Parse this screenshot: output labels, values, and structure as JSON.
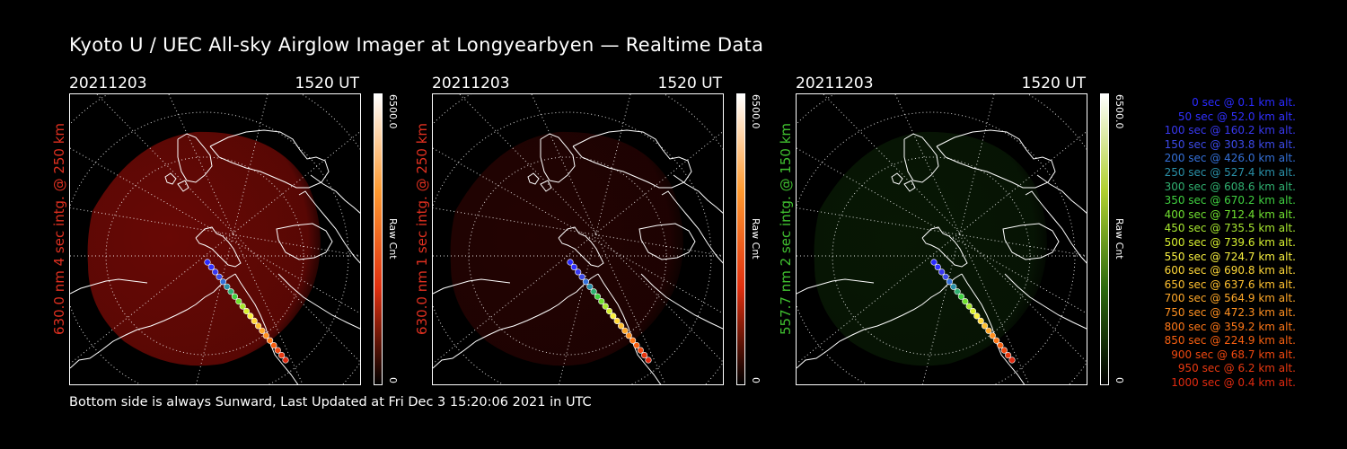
{
  "title": "Kyoto U / UEC All-sky Airglow Imager at Longyearbyen — Realtime Data",
  "footer": "Bottom side is always Sunward, Last Updated at Fri Dec  3 15:20:06 2021 in UTC",
  "panels": [
    {
      "date": "20211203",
      "time": "1520 UT",
      "ylabel": "630.0 nm 4 sec intg. @ 250 km",
      "ylabel_color": "#e03020",
      "cbar_max": "6500.0",
      "cbar_min": "0",
      "cbar_unit": "Raw Cnt",
      "cbar_colors": [
        "#000000",
        "#e03010",
        "#ff9a30",
        "#ffffff"
      ],
      "glow_color": "#7a0a06",
      "glow_level": 0.85
    },
    {
      "date": "20211203",
      "time": "1520 UT",
      "ylabel": "630.0 nm 1 sec intg. @ 250 km",
      "ylabel_color": "#e03020",
      "cbar_max": "6500.0",
      "cbar_min": "0",
      "cbar_unit": "Raw Cnt",
      "cbar_colors": [
        "#000000",
        "#e03010",
        "#ff9a30",
        "#ffffff"
      ],
      "glow_color": "#3a0503",
      "glow_level": 0.6
    },
    {
      "date": "20211203",
      "time": "1520 UT",
      "ylabel": "557.7 nm 2 sec intg. @ 150 km",
      "ylabel_color": "#40c030",
      "cbar_max": "6500.0",
      "cbar_min": "0",
      "cbar_unit": "Raw Cnt",
      "cbar_colors": [
        "#000000",
        "#2e6a10",
        "#b0d030",
        "#ffffff"
      ],
      "glow_color": "#0e2a08",
      "glow_level": 0.55
    }
  ],
  "legend": [
    {
      "text": "0 sec @   0.1 km alt.",
      "color": "#2a2aff"
    },
    {
      "text": "50 sec @  52.0 km alt.",
      "color": "#3030ff"
    },
    {
      "text": "100 sec @ 160.2 km alt.",
      "color": "#3838f0"
    },
    {
      "text": "150 sec @ 303.8 km alt.",
      "color": "#3c4ae8"
    },
    {
      "text": "200 sec @ 426.0 km alt.",
      "color": "#3470d8"
    },
    {
      "text": "250 sec @ 527.4 km alt.",
      "color": "#2a90a8"
    },
    {
      "text": "300 sec @ 608.6 km alt.",
      "color": "#30b070"
    },
    {
      "text": "350 sec @ 670.2 km alt.",
      "color": "#40d040"
    },
    {
      "text": "400 sec @ 712.4 km alt.",
      "color": "#70e030"
    },
    {
      "text": "450 sec @ 735.5 km alt.",
      "color": "#a8e830"
    },
    {
      "text": "500 sec @ 739.6 km alt.",
      "color": "#d8f030"
    },
    {
      "text": "550 sec @ 724.7 km alt.",
      "color": "#f8f040"
    },
    {
      "text": "600 sec @ 690.8 km alt.",
      "color": "#ffd838"
    },
    {
      "text": "650 sec @ 637.6 km alt.",
      "color": "#ffc030"
    },
    {
      "text": "700 sec @ 564.9 km alt.",
      "color": "#ffa828"
    },
    {
      "text": "750 sec @ 472.3 km alt.",
      "color": "#ff9020"
    },
    {
      "text": "800 sec @ 359.2 km alt.",
      "color": "#ff7818"
    },
    {
      "text": "850 sec @ 224.9 km alt.",
      "color": "#f86010"
    },
    {
      "text": "900 sec @  68.7 km alt.",
      "color": "#f04810"
    },
    {
      "text": "950 sec @   6.2 km alt.",
      "color": "#e83810"
    },
    {
      "text": "1000 sec @   0.4 km alt.",
      "color": "#e02a10"
    }
  ]
}
